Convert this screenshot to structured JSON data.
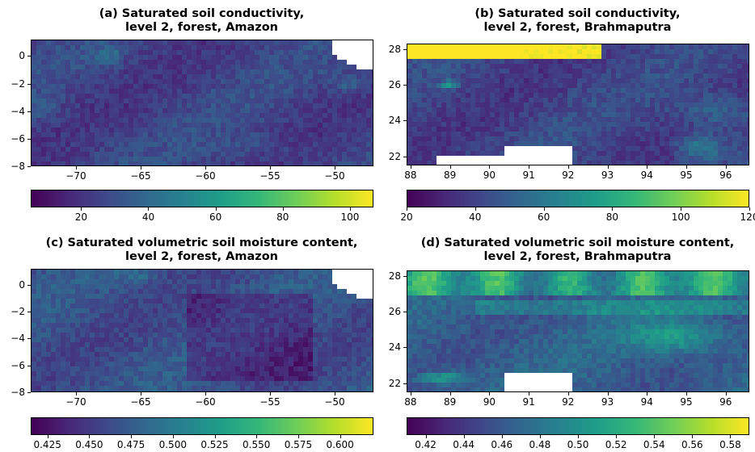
{
  "colors": {
    "viridis": [
      "#440154",
      "#482878",
      "#3e4989",
      "#31688e",
      "#26828e",
      "#1f9e89",
      "#35b779",
      "#6ece58",
      "#b5de2b",
      "#fde725"
    ],
    "missing": "#ffffff"
  },
  "chart_data": [
    {
      "type": "heatmap",
      "panel": "a",
      "title_line1": "(a) Saturated soil conductivity,",
      "title_line2": "level 2, forest, Amazon",
      "x_ticks": [
        "−70",
        "−65",
        "−60",
        "−55",
        "−50"
      ],
      "x_values": [
        -70,
        -65,
        -60,
        -55,
        -50
      ],
      "xlim": [
        -73.5,
        -47
      ],
      "y_ticks": [
        "0",
        "−2",
        "−4",
        "−6",
        "−8"
      ],
      "y_values": [
        0,
        -2,
        -4,
        -6,
        -8
      ],
      "ylim": [
        -8,
        1.2
      ],
      "colorbar": {
        "ticks": [
          "20",
          "40",
          "60",
          "80",
          "100"
        ],
        "values": [
          20,
          40,
          60,
          80,
          100
        ],
        "range": [
          5,
          107
        ]
      },
      "dominant_level": 0.2
    },
    {
      "type": "heatmap",
      "panel": "b",
      "title_line1": "(b) Saturated soil conductivity,",
      "title_line2": "level 2, forest, Brahmaputra",
      "x_ticks": [
        "88",
        "89",
        "90",
        "91",
        "92",
        "93",
        "94",
        "95",
        "96"
      ],
      "x_values": [
        88,
        89,
        90,
        91,
        92,
        93,
        94,
        95,
        96
      ],
      "xlim": [
        87.9,
        96.6
      ],
      "y_ticks": [
        "28",
        "26",
        "24",
        "22"
      ],
      "y_values": [
        28,
        26,
        24,
        22
      ],
      "ylim": [
        21.5,
        28.3
      ],
      "colorbar": {
        "ticks": [
          "20",
          "40",
          "60",
          "80",
          "100",
          "120"
        ],
        "values": [
          20,
          40,
          60,
          80,
          100,
          120
        ],
        "range": [
          20,
          120
        ]
      },
      "dominant_level": 0.2
    },
    {
      "type": "heatmap",
      "panel": "c",
      "title_line1": "(c) Saturated volumetric soil moisture content,",
      "title_line2": "level 2, forest, Amazon",
      "x_ticks": [
        "−70",
        "−65",
        "−60",
        "−55",
        "−50"
      ],
      "x_values": [
        -70,
        -65,
        -60,
        -55,
        -50
      ],
      "xlim": [
        -73.5,
        -47
      ],
      "y_ticks": [
        "0",
        "−2",
        "−4",
        "−6",
        "−8"
      ],
      "y_values": [
        0,
        -2,
        -4,
        -6,
        -8
      ],
      "ylim": [
        -8,
        1.2
      ],
      "colorbar": {
        "ticks": [
          "0.425",
          "0.450",
          "0.475",
          "0.500",
          "0.525",
          "0.550",
          "0.575",
          "0.600"
        ],
        "values": [
          0.425,
          0.45,
          0.475,
          0.5,
          0.525,
          0.55,
          0.575,
          0.6
        ],
        "range": [
          0.415,
          0.62
        ]
      },
      "dominant_level": 0.25
    },
    {
      "type": "heatmap",
      "panel": "d",
      "title_line1": "(d) Saturated volumetric soil moisture content,",
      "title_line2": "level 2, forest, Brahmaputra",
      "x_ticks": [
        "88",
        "89",
        "90",
        "91",
        "92",
        "93",
        "94",
        "95",
        "96"
      ],
      "x_values": [
        88,
        89,
        90,
        91,
        92,
        93,
        94,
        95,
        96
      ],
      "xlim": [
        87.9,
        96.6
      ],
      "y_ticks": [
        "28",
        "26",
        "24",
        "22"
      ],
      "y_values": [
        28,
        26,
        24,
        22
      ],
      "ylim": [
        21.5,
        28.3
      ],
      "colorbar": {
        "ticks": [
          "0.42",
          "0.44",
          "0.46",
          "0.48",
          "0.50",
          "0.52",
          "0.54",
          "0.56",
          "0.58"
        ],
        "values": [
          0.42,
          0.44,
          0.46,
          0.48,
          0.5,
          0.52,
          0.54,
          0.56,
          0.58
        ],
        "range": [
          0.41,
          0.59
        ]
      },
      "dominant_level": 0.3
    }
  ]
}
